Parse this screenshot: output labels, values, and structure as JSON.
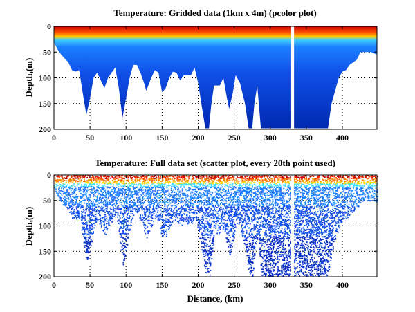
{
  "chart_data": [
    {
      "type": "heatmap",
      "title": "Temperature: Gridded data (1km x 4m) (pcolor plot)",
      "xlabel": "",
      "ylabel": "Depth,(m)",
      "xlim": [
        0,
        448
      ],
      "ylim": [
        200,
        0
      ],
      "xticks": [
        "0",
        "50",
        "100",
        "150",
        "200",
        "250",
        "300",
        "350",
        "400"
      ],
      "yticks": [
        "0",
        "50",
        "100",
        "150",
        "200"
      ],
      "grid": true
    },
    {
      "type": "scatter",
      "title": "Temperature: Full data set (scatter plot, every 20th point used)",
      "xlabel": "Distance, (km)",
      "ylabel": "Depth,(m)",
      "xlim": [
        0,
        448
      ],
      "ylim": [
        200,
        0
      ],
      "xticks": [
        "0",
        "50",
        "100",
        "150",
        "200",
        "250",
        "300",
        "350",
        "400"
      ],
      "yticks": [
        "0",
        "50",
        "100",
        "150",
        "200"
      ],
      "grid": true
    }
  ],
  "profile": {
    "distance_km": [
      0,
      5,
      10,
      20,
      25,
      30,
      35,
      40,
      45,
      50,
      55,
      60,
      65,
      70,
      75,
      80,
      85,
      90,
      95,
      100,
      105,
      110,
      115,
      120,
      125,
      128,
      135,
      140,
      145,
      150,
      155,
      160,
      165,
      170,
      175,
      180,
      190,
      195,
      200,
      205,
      210,
      215,
      218,
      222,
      230,
      235,
      240,
      243,
      248,
      252,
      258,
      265,
      270,
      275,
      278,
      282,
      287,
      328,
      333,
      380,
      385,
      395,
      400,
      405,
      410,
      420,
      425,
      440,
      448
    ],
    "max_depth_m": [
      30,
      45,
      55,
      70,
      85,
      88,
      85,
      130,
      172,
      140,
      100,
      90,
      105,
      120,
      100,
      90,
      80,
      120,
      178,
      140,
      100,
      75,
      75,
      90,
      110,
      125,
      100,
      85,
      90,
      128,
      120,
      100,
      88,
      90,
      105,
      95,
      95,
      80,
      110,
      155,
      198,
      198,
      155,
      115,
      115,
      100,
      140,
      160,
      130,
      95,
      110,
      150,
      198,
      198,
      150,
      115,
      198,
      198,
      198,
      198,
      150,
      100,
      88,
      85,
      75,
      65,
      50,
      50,
      55
    ],
    "gap_km": [
      329,
      333
    ],
    "colors": {
      "surface_hot": "#8b0000",
      "surface": "#ff3000",
      "thermocline": "#ffe000",
      "mid": "#1e7fff",
      "deep": "#0a3cd6",
      "bottom": "#0020a0"
    }
  }
}
